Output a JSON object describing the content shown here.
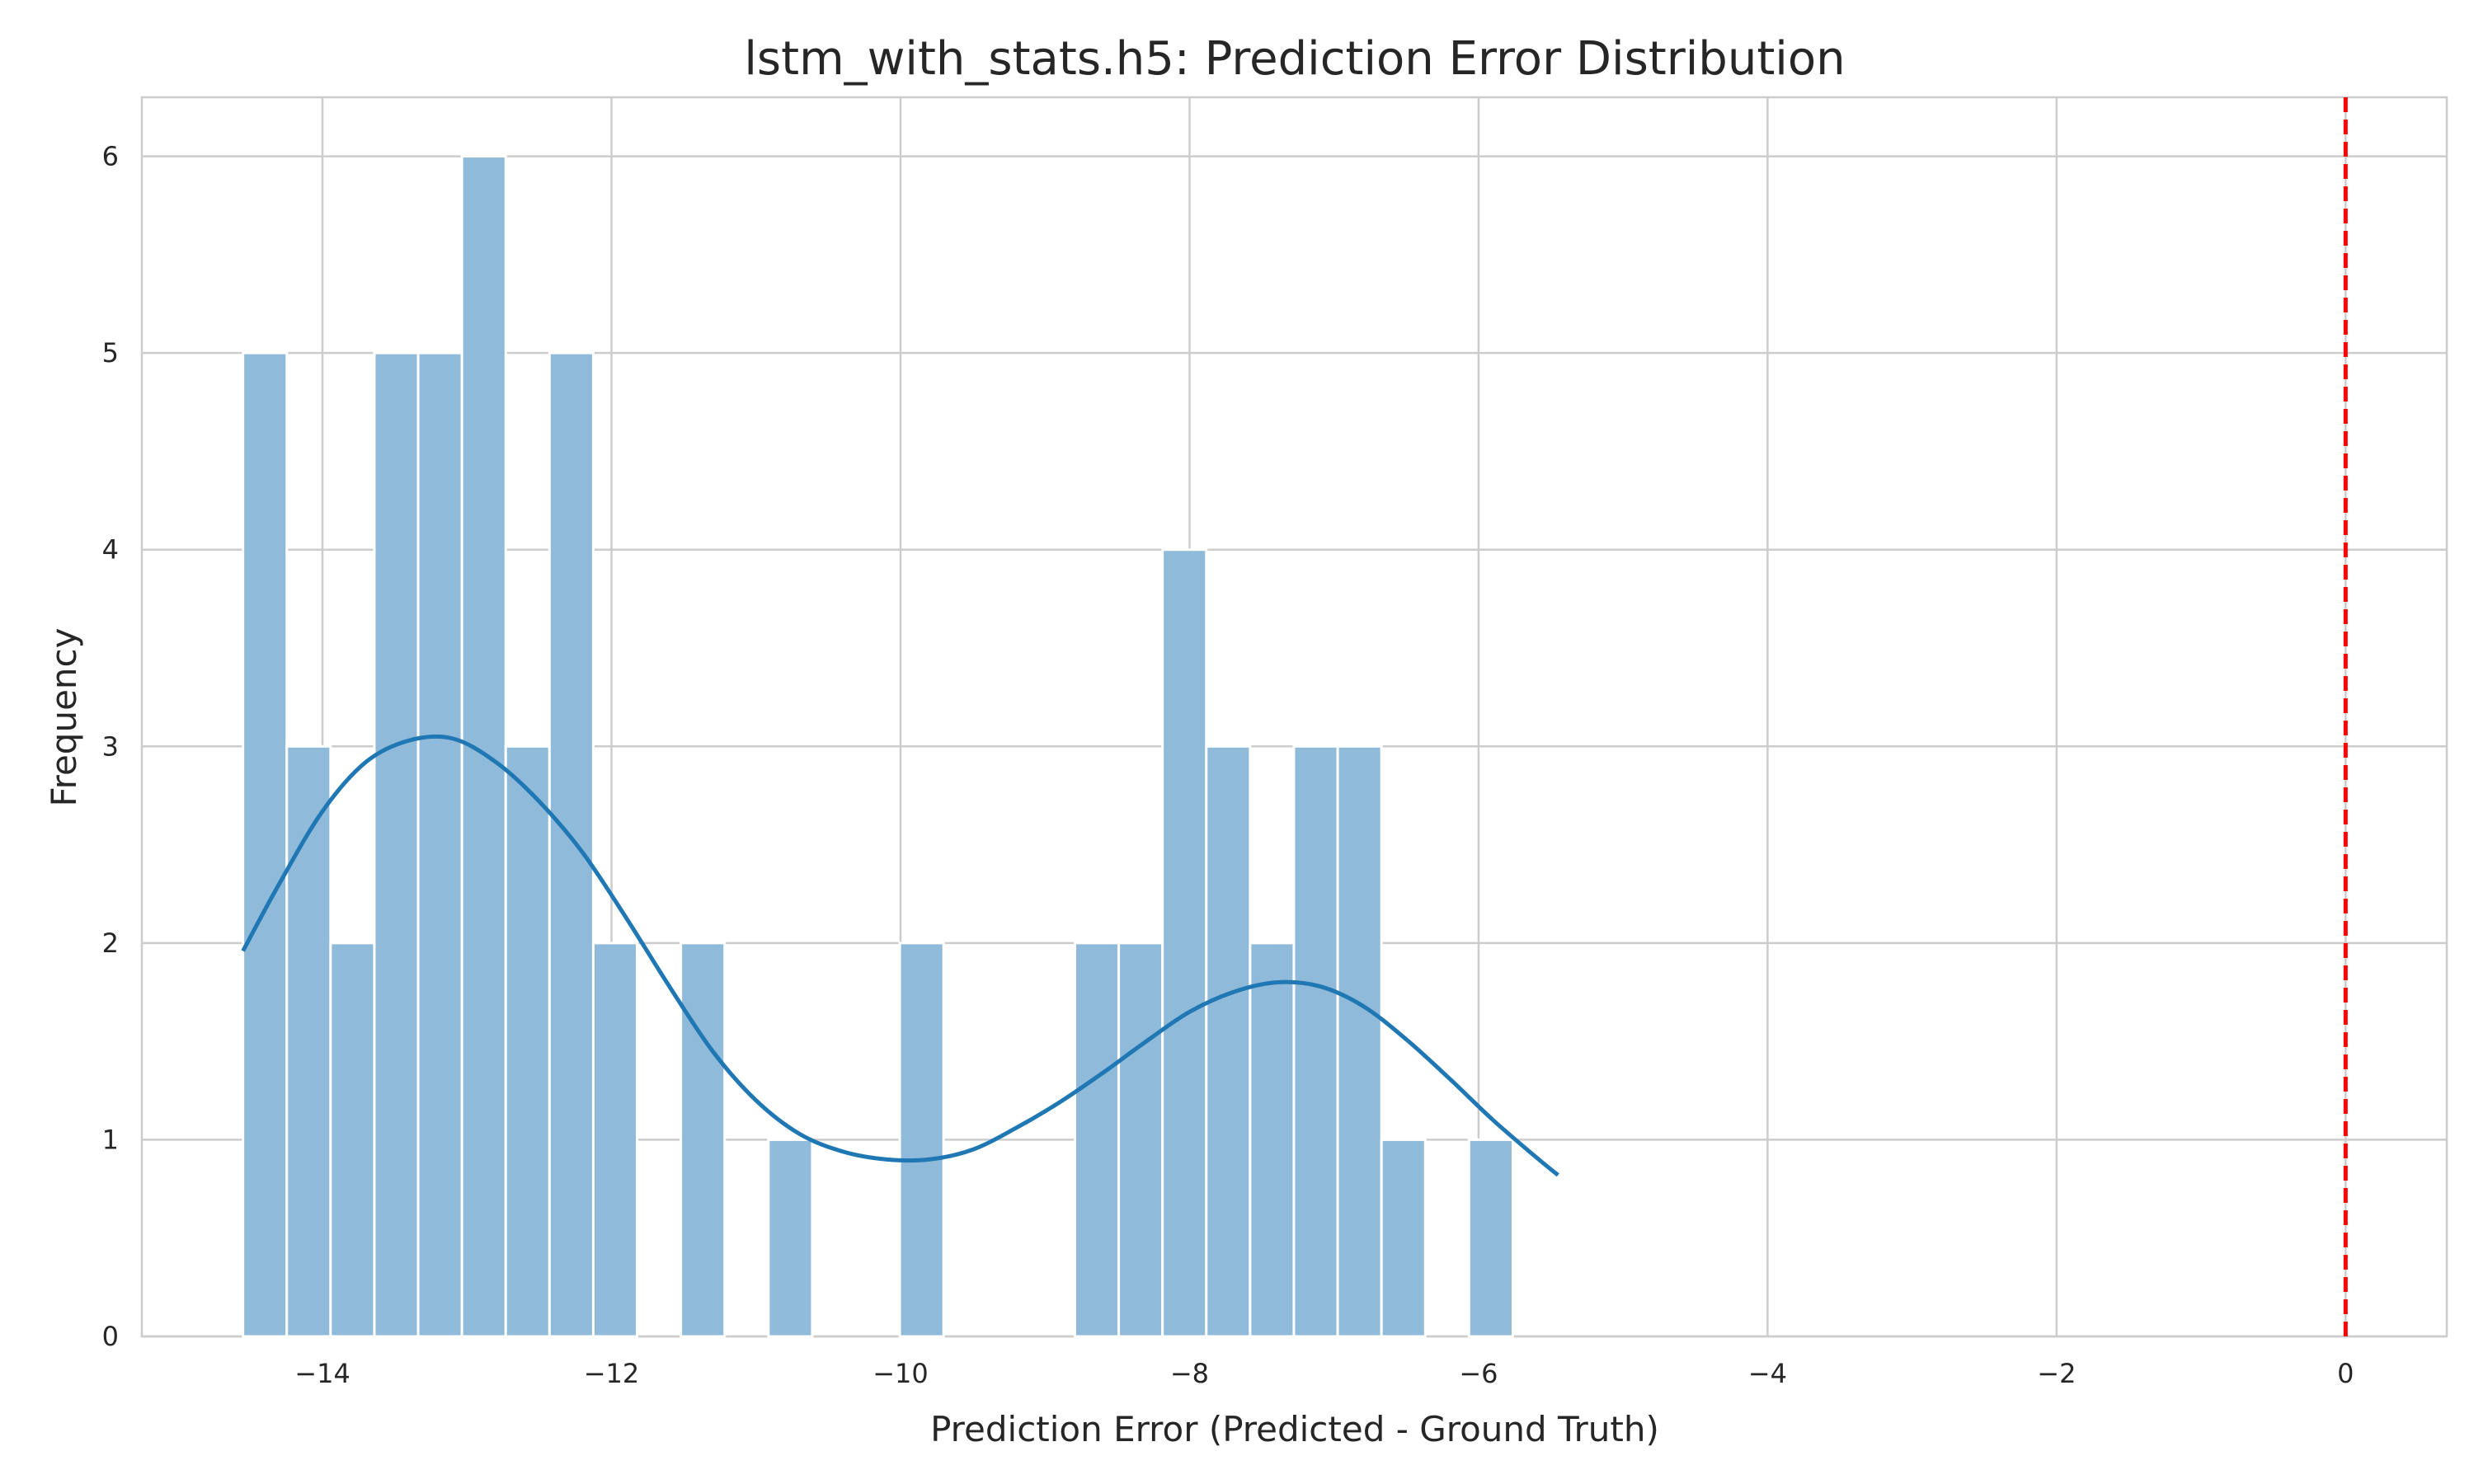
{
  "chart_data": {
    "type": "bar",
    "title": "lstm_with_stats.h5: Prediction Error Distribution",
    "xlabel": "Prediction Error (Predicted - Ground Truth)",
    "ylabel": "Frequency",
    "xlim": [
      -15.25,
      0.7
    ],
    "ylim": [
      0,
      6.3
    ],
    "xticks": [
      -14,
      -12,
      -10,
      -8,
      -6,
      -4,
      -2,
      0
    ],
    "xtick_labels": [
      "−14",
      "−12",
      "−10",
      "−8",
      "−6",
      "−4",
      "−2",
      "0"
    ],
    "yticks": [
      0,
      1,
      2,
      3,
      4,
      5,
      6
    ],
    "ytick_labels": [
      "0",
      "1",
      "2",
      "3",
      "4",
      "5",
      "6"
    ],
    "grid": true,
    "legend": false,
    "bin_start": -14.55,
    "bin_width": 0.303,
    "counts": [
      5,
      3,
      2,
      5,
      5,
      6,
      3,
      5,
      2,
      0,
      2,
      0,
      1,
      0,
      0,
      2,
      0,
      0,
      0,
      2,
      2,
      4,
      3,
      2,
      3,
      3,
      1,
      0,
      1
    ],
    "kde": {
      "x": [
        -14.55,
        -14.3,
        -14.0,
        -13.7,
        -13.4,
        -13.1,
        -12.8,
        -12.5,
        -12.2,
        -11.9,
        -11.6,
        -11.3,
        -11.0,
        -10.7,
        -10.4,
        -10.1,
        -9.8,
        -9.5,
        -9.2,
        -8.9,
        -8.6,
        -8.3,
        -8.0,
        -7.7,
        -7.4,
        -7.1,
        -6.8,
        -6.5,
        -6.2,
        -5.9,
        -5.6,
        -5.45
      ],
      "y": [
        1.96,
        2.3,
        2.67,
        2.92,
        3.03,
        3.04,
        2.92,
        2.72,
        2.46,
        2.13,
        1.78,
        1.45,
        1.2,
        1.03,
        0.94,
        0.9,
        0.9,
        0.95,
        1.06,
        1.19,
        1.34,
        1.5,
        1.65,
        1.75,
        1.8,
        1.78,
        1.68,
        1.51,
        1.31,
        1.1,
        0.91,
        0.82
      ]
    },
    "reference_line": {
      "x": 0,
      "color": "#ff0000",
      "style": "dashed"
    },
    "colors": {
      "bar": "#8fbad9",
      "kde": "#1f77b4",
      "grid": "#cccccc"
    }
  },
  "title": "lstm_with_stats.h5: Prediction Error Distribution",
  "xlabel": "Prediction Error (Predicted - Ground Truth)",
  "ylabel": "Frequency"
}
